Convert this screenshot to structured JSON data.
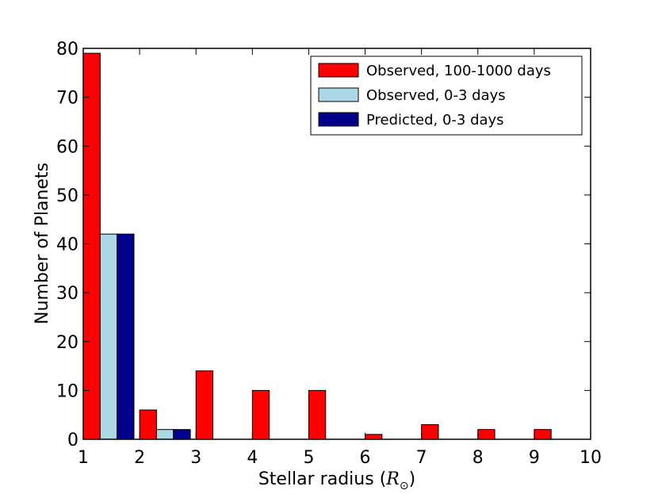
{
  "chart_data": {
    "type": "bar",
    "xlabel": "Stellar radius",
    "xlabel_unit": "R",
    "xlabel_unit_sub": "⊙",
    "ylabel": "Number of Planets",
    "xlim": [
      1,
      10
    ],
    "ylim": [
      0,
      80
    ],
    "xticks": [
      "1",
      "2",
      "3",
      "4",
      "5",
      "6",
      "7",
      "8",
      "9",
      "10"
    ],
    "yticks": [
      "0",
      "10",
      "20",
      "30",
      "40",
      "50",
      "60",
      "70",
      "80"
    ],
    "grid": false,
    "legend_position": "top-right",
    "bins": [
      [
        1,
        2
      ],
      [
        2,
        3
      ],
      [
        3,
        4
      ],
      [
        4,
        5
      ],
      [
        5,
        6
      ],
      [
        6,
        7
      ],
      [
        7,
        8
      ],
      [
        8,
        9
      ],
      [
        9,
        10
      ]
    ],
    "series": [
      {
        "name": "Observed, 100-1000 days",
        "color": "#ff0000",
        "values": [
          79,
          6,
          14,
          10,
          10,
          1,
          3,
          2,
          2
        ]
      },
      {
        "name": "Observed, 0-3 days",
        "color": "#add8e6",
        "values": [
          42,
          2,
          0,
          0,
          0,
          0,
          0,
          0,
          0
        ]
      },
      {
        "name": "Predicted, 0-3 days",
        "color": "#00008b",
        "values": [
          42,
          2,
          0,
          0,
          0,
          0,
          0,
          0,
          0
        ]
      }
    ]
  }
}
